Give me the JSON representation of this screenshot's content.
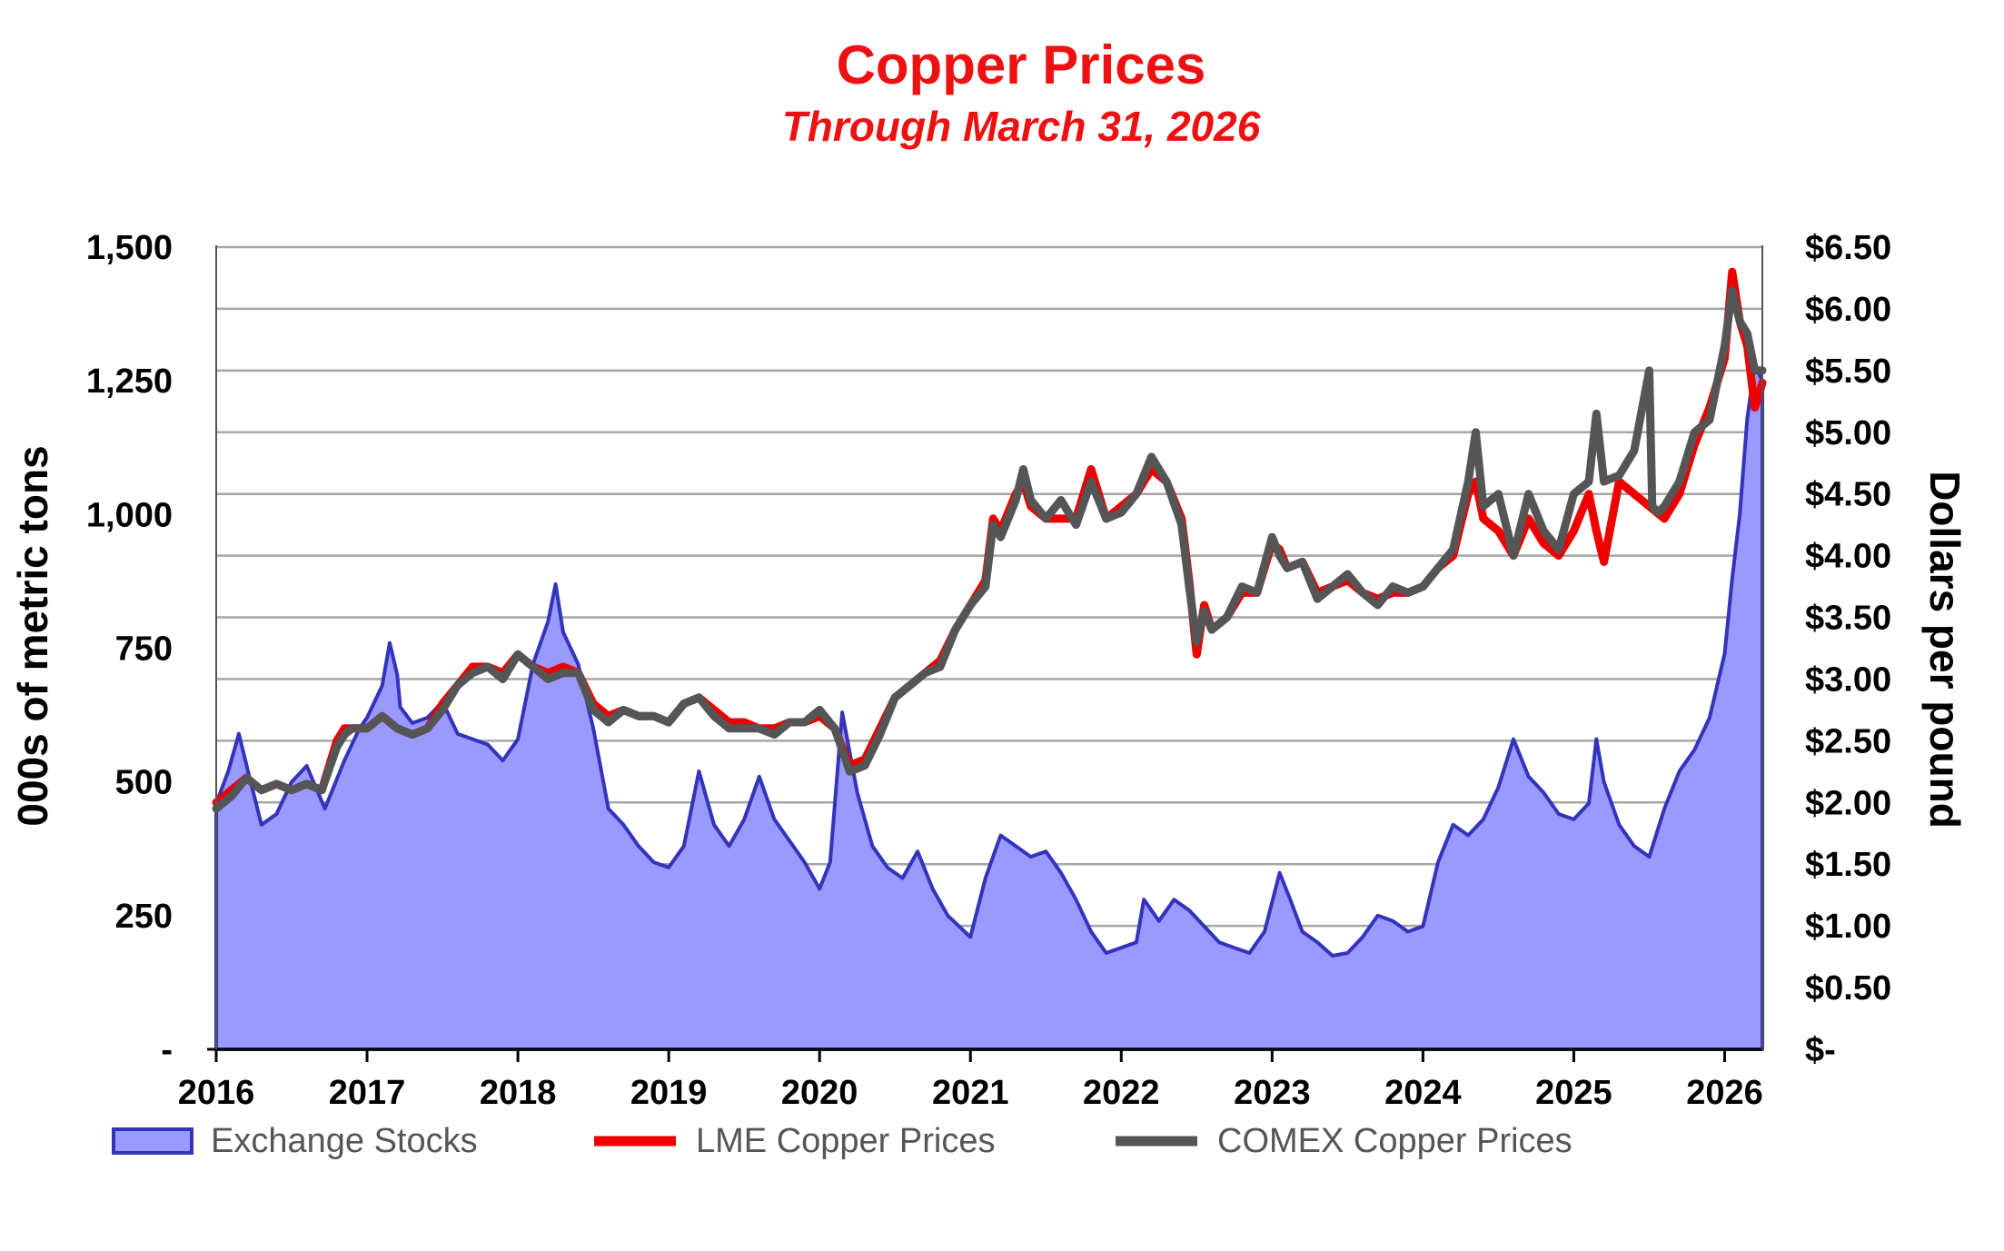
{
  "chart_data": {
    "type": "line",
    "title": "Copper Prices",
    "subtitle": "Through March 31, 2026",
    "ylabel_left": "000s of metric tons",
    "ylabel_right": "Dollars per pound",
    "x_ticks": [
      "2016",
      "2017",
      "2018",
      "2019",
      "2020",
      "2021",
      "2022",
      "2023",
      "2024",
      "2025",
      "2026"
    ],
    "y_left_ticks": [
      "-",
      "250",
      "500",
      "750",
      "1,000",
      "1,250",
      "1,500"
    ],
    "y_left_range": [
      0,
      1500
    ],
    "y_right_ticks": [
      "$-",
      "$0.50",
      "$1.00",
      "$1.50",
      "$2.00",
      "$2.50",
      "$3.00",
      "$3.50",
      "$4.00",
      "$4.50",
      "$5.00",
      "$5.50",
      "$6.00",
      "$6.50"
    ],
    "y_right_range": [
      0,
      6.5
    ],
    "x_range": [
      2016.0,
      2026.25
    ],
    "grid": "horizontal",
    "legend_position": "bottom",
    "series": [
      {
        "name": "Exchange Stocks",
        "type": "area",
        "axis": "left",
        "color": "#9999ff",
        "edge_color": "#3333bb",
        "x": [
          2016.0,
          2016.08,
          2016.15,
          2016.22,
          2016.3,
          2016.4,
          2016.5,
          2016.6,
          2016.72,
          2016.85,
          2016.95,
          2017.0,
          2017.1,
          2017.15,
          2017.2,
          2017.22,
          2017.3,
          2017.4,
          2017.5,
          2017.6,
          2017.7,
          2017.8,
          2017.9,
          2018.0,
          2018.1,
          2018.2,
          2018.25,
          2018.3,
          2018.4,
          2018.5,
          2018.6,
          2018.7,
          2018.8,
          2018.9,
          2019.0,
          2019.1,
          2019.2,
          2019.3,
          2019.4,
          2019.5,
          2019.6,
          2019.7,
          2019.8,
          2019.9,
          2020.0,
          2020.07,
          2020.15,
          2020.25,
          2020.35,
          2020.45,
          2020.55,
          2020.65,
          2020.75,
          2020.85,
          2021.0,
          2021.1,
          2021.2,
          2021.3,
          2021.4,
          2021.5,
          2021.6,
          2021.7,
          2021.8,
          2021.9,
          2022.0,
          2022.1,
          2022.15,
          2022.25,
          2022.35,
          2022.45,
          2022.55,
          2022.65,
          2022.75,
          2022.85,
          2022.95,
          2023.05,
          2023.12,
          2023.2,
          2023.3,
          2023.4,
          2023.5,
          2023.6,
          2023.7,
          2023.8,
          2023.9,
          2024.0,
          2024.1,
          2024.2,
          2024.3,
          2024.4,
          2024.5,
          2024.6,
          2024.7,
          2024.8,
          2024.9,
          2025.0,
          2025.1,
          2025.15,
          2025.2,
          2025.3,
          2025.4,
          2025.5,
          2025.6,
          2025.7,
          2025.8,
          2025.9,
          2026.0,
          2026.05,
          2026.1,
          2026.15,
          2026.2,
          2026.25
        ],
        "values": [
          460,
          520,
          590,
          510,
          420,
          440,
          500,
          530,
          450,
          540,
          600,
          620,
          680,
          760,
          700,
          640,
          610,
          620,
          650,
          590,
          580,
          570,
          540,
          580,
          720,
          800,
          870,
          780,
          720,
          600,
          450,
          420,
          380,
          350,
          340,
          380,
          520,
          420,
          380,
          430,
          510,
          430,
          390,
          350,
          300,
          350,
          630,
          480,
          380,
          340,
          320,
          370,
          300,
          250,
          210,
          320,
          400,
          380,
          360,
          370,
          330,
          280,
          220,
          180,
          190,
          200,
          280,
          240,
          280,
          260,
          230,
          200,
          190,
          180,
          220,
          330,
          280,
          220,
          200,
          175,
          180,
          210,
          250,
          240,
          220,
          230,
          350,
          420,
          400,
          430,
          490,
          580,
          510,
          480,
          440,
          430,
          460,
          580,
          500,
          420,
          380,
          360,
          450,
          520,
          560,
          620,
          740,
          880,
          1000,
          1180,
          1280,
          1250
        ]
      },
      {
        "name": "LME Copper Prices",
        "type": "line",
        "axis": "right",
        "color": "#ee0000",
        "x": [
          2016.0,
          2016.1,
          2016.2,
          2016.3,
          2016.4,
          2016.5,
          2016.6,
          2016.7,
          2016.8,
          2016.85,
          2016.9,
          2017.0,
          2017.1,
          2017.2,
          2017.3,
          2017.4,
          2017.5,
          2017.6,
          2017.7,
          2017.8,
          2017.9,
          2018.0,
          2018.1,
          2018.2,
          2018.3,
          2018.4,
          2018.5,
          2018.6,
          2018.7,
          2018.8,
          2018.9,
          2019.0,
          2019.1,
          2019.2,
          2019.3,
          2019.4,
          2019.5,
          2019.6,
          2019.7,
          2019.8,
          2019.9,
          2020.0,
          2020.1,
          2020.2,
          2020.3,
          2020.4,
          2020.5,
          2020.6,
          2020.7,
          2020.8,
          2020.9,
          2021.0,
          2021.1,
          2021.15,
          2021.2,
          2021.3,
          2021.35,
          2021.4,
          2021.5,
          2021.6,
          2021.7,
          2021.8,
          2021.9,
          2022.0,
          2022.1,
          2022.2,
          2022.25,
          2022.3,
          2022.4,
          2022.45,
          2022.5,
          2022.55,
          2022.6,
          2022.7,
          2022.8,
          2022.9,
          2023.0,
          2023.05,
          2023.1,
          2023.2,
          2023.3,
          2023.4,
          2023.5,
          2023.6,
          2023.7,
          2023.8,
          2023.9,
          2024.0,
          2024.1,
          2024.2,
          2024.3,
          2024.35,
          2024.4,
          2024.5,
          2024.6,
          2024.7,
          2024.8,
          2024.9,
          2025.0,
          2025.1,
          2025.15,
          2025.2,
          2025.3,
          2025.4,
          2025.5,
          2025.6,
          2025.7,
          2025.8,
          2025.9,
          2026.0,
          2026.05,
          2026.1,
          2026.15,
          2026.2,
          2026.25
        ],
        "values": [
          2.0,
          2.1,
          2.2,
          2.1,
          2.15,
          2.1,
          2.15,
          2.1,
          2.5,
          2.6,
          2.6,
          2.6,
          2.7,
          2.6,
          2.55,
          2.6,
          2.8,
          2.95,
          3.1,
          3.1,
          3.05,
          3.2,
          3.1,
          3.05,
          3.1,
          3.05,
          2.8,
          2.7,
          2.75,
          2.7,
          2.7,
          2.65,
          2.8,
          2.85,
          2.75,
          2.65,
          2.65,
          2.6,
          2.6,
          2.65,
          2.65,
          2.7,
          2.6,
          2.3,
          2.35,
          2.6,
          2.85,
          2.95,
          3.05,
          3.15,
          3.4,
          3.6,
          3.8,
          4.3,
          4.2,
          4.5,
          4.6,
          4.4,
          4.3,
          4.3,
          4.3,
          4.7,
          4.3,
          4.4,
          4.5,
          4.7,
          4.65,
          4.6,
          4.3,
          3.8,
          3.2,
          3.6,
          3.4,
          3.5,
          3.7,
          3.7,
          4.1,
          4.05,
          3.9,
          3.95,
          3.7,
          3.75,
          3.8,
          3.7,
          3.65,
          3.7,
          3.7,
          3.75,
          3.9,
          4.0,
          4.5,
          4.6,
          4.3,
          4.2,
          4.0,
          4.3,
          4.1,
          4.0,
          4.2,
          4.5,
          4.2,
          3.95,
          4.6,
          4.5,
          4.4,
          4.3,
          4.5,
          4.9,
          5.2,
          5.6,
          6.3,
          5.9,
          5.7,
          5.2,
          5.4
        ]
      },
      {
        "name": "COMEX Copper Prices",
        "type": "line",
        "axis": "right",
        "color": "#555555",
        "x": [
          2016.0,
          2016.1,
          2016.2,
          2016.3,
          2016.4,
          2016.5,
          2016.6,
          2016.7,
          2016.8,
          2016.85,
          2016.9,
          2017.0,
          2017.1,
          2017.2,
          2017.3,
          2017.4,
          2017.5,
          2017.6,
          2017.7,
          2017.8,
          2017.9,
          2018.0,
          2018.1,
          2018.2,
          2018.3,
          2018.4,
          2018.5,
          2018.6,
          2018.7,
          2018.8,
          2018.9,
          2019.0,
          2019.1,
          2019.2,
          2019.3,
          2019.4,
          2019.5,
          2019.6,
          2019.7,
          2019.8,
          2019.9,
          2020.0,
          2020.1,
          2020.2,
          2020.3,
          2020.4,
          2020.5,
          2020.6,
          2020.7,
          2020.8,
          2020.9,
          2021.0,
          2021.1,
          2021.15,
          2021.2,
          2021.3,
          2021.35,
          2021.4,
          2021.5,
          2021.6,
          2021.7,
          2021.8,
          2021.9,
          2022.0,
          2022.1,
          2022.2,
          2022.25,
          2022.3,
          2022.4,
          2022.45,
          2022.5,
          2022.55,
          2022.6,
          2022.7,
          2022.8,
          2022.9,
          2023.0,
          2023.05,
          2023.1,
          2023.2,
          2023.3,
          2023.4,
          2023.5,
          2023.6,
          2023.7,
          2023.8,
          2023.9,
          2024.0,
          2024.1,
          2024.2,
          2024.3,
          2024.35,
          2024.4,
          2024.5,
          2024.6,
          2024.7,
          2024.8,
          2024.9,
          2025.0,
          2025.1,
          2025.15,
          2025.2,
          2025.3,
          2025.4,
          2025.5,
          2025.52,
          2025.56,
          2025.6,
          2025.7,
          2025.8,
          2025.9,
          2026.0,
          2026.05,
          2026.1,
          2026.15,
          2026.2,
          2026.25
        ],
        "values": [
          1.95,
          2.05,
          2.2,
          2.1,
          2.15,
          2.1,
          2.15,
          2.1,
          2.45,
          2.55,
          2.6,
          2.6,
          2.7,
          2.6,
          2.55,
          2.6,
          2.75,
          2.95,
          3.05,
          3.1,
          3.0,
          3.2,
          3.1,
          3.0,
          3.05,
          3.05,
          2.75,
          2.65,
          2.75,
          2.7,
          2.7,
          2.65,
          2.8,
          2.85,
          2.7,
          2.6,
          2.6,
          2.6,
          2.55,
          2.65,
          2.65,
          2.75,
          2.6,
          2.25,
          2.3,
          2.55,
          2.85,
          2.95,
          3.05,
          3.1,
          3.4,
          3.6,
          3.75,
          4.25,
          4.15,
          4.45,
          4.7,
          4.45,
          4.3,
          4.45,
          4.25,
          4.6,
          4.3,
          4.35,
          4.5,
          4.8,
          4.7,
          4.6,
          4.25,
          3.75,
          3.3,
          3.55,
          3.4,
          3.5,
          3.75,
          3.7,
          4.15,
          4.0,
          3.9,
          3.95,
          3.65,
          3.75,
          3.85,
          3.7,
          3.6,
          3.75,
          3.7,
          3.75,
          3.9,
          4.05,
          4.6,
          5.0,
          4.4,
          4.5,
          4.0,
          4.5,
          4.2,
          4.05,
          4.5,
          4.6,
          5.15,
          4.6,
          4.65,
          4.85,
          5.5,
          4.4,
          4.35,
          4.4,
          4.6,
          5.0,
          5.1,
          5.7,
          6.15,
          5.9,
          5.8,
          5.5,
          5.5
        ]
      }
    ]
  }
}
